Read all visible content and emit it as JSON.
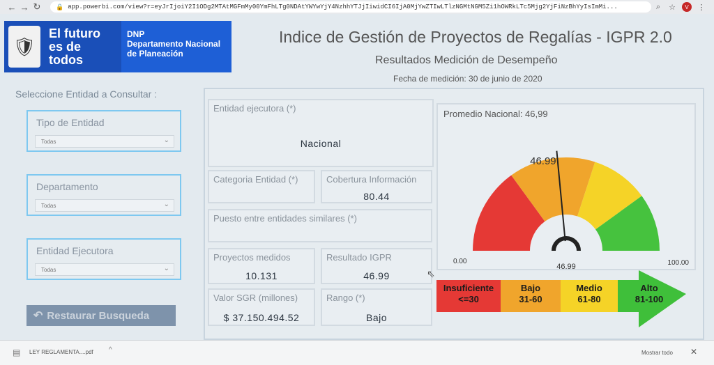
{
  "browser": {
    "url": "app.powerbi.com/view?r=eyJrIjoiY2I1ODg2MTAtMGFmMy00YmFhLTg0NDAtYWYwYjY4NzhhYTJjIiwidCI6IjA0MjYwZTIwLTlzNGMtNGM5Zi1hOWRkLTc5Mjg2YjFiNzBhYyIsImMi...",
    "avatar_letter": "V",
    "icons": [
      "back-icon",
      "forward-icon",
      "reload-icon",
      "lock-icon",
      "search-icon",
      "star-icon",
      "menu-icon"
    ]
  },
  "header": {
    "slogan": "El futuro es de todos",
    "dnp_abbr": "DNP",
    "dnp_name": "Departamento Nacional de Planeación",
    "title": "Indice de Gestión de Proyectos de Regalías - IGPR 2.0",
    "subtitle": "Resultados Medición de Desempeño",
    "date": "Fecha de medición: 30 de junio de 2020"
  },
  "filters": {
    "heading": "Seleccione Entidad a Consultar :",
    "items": [
      {
        "label": "Tipo de Entidad",
        "value": "Todas"
      },
      {
        "label": "Departamento",
        "value": "Todas"
      },
      {
        "label": "Entidad Ejecutora",
        "value": "Todas"
      }
    ],
    "restore_label": "Restaurar Busqueda"
  },
  "cards": {
    "entidad": {
      "label": "Entidad ejecutora (*)",
      "value": "Nacional"
    },
    "categoria": {
      "label": "Categoria Entidad (*)"
    },
    "cobertura": {
      "label": "Cobertura Información",
      "value": "80.44"
    },
    "puesto": {
      "label": "Puesto entre entidades similares (*)"
    },
    "proyectos": {
      "label": "Proyectos medidos",
      "value": "10.131"
    },
    "resultado": {
      "label": "Resultado IGPR",
      "value": "46.99"
    },
    "valor": {
      "label": "Valor SGR (millones)",
      "value": "$ 37.150.494.52"
    },
    "rango": {
      "label": "Rango (*)",
      "value": "Bajo"
    }
  },
  "gauge": {
    "title": "Promedio Nacional: 46,99",
    "value": 46.99,
    "value_label": "46.99",
    "center_label": "46.99",
    "min_label": "0.00",
    "max_label": "100.00",
    "min": 0,
    "max": 100,
    "segments": [
      {
        "from": 0,
        "to": 30,
        "color": "#e53935"
      },
      {
        "from": 30,
        "to": 60,
        "color": "#f0a52c"
      },
      {
        "from": 60,
        "to": 80,
        "color": "#f5d327"
      },
      {
        "from": 80,
        "to": 100,
        "color": "#46c23e"
      }
    ]
  },
  "legend": [
    {
      "name": "Insuficiente",
      "range": "<=30",
      "color": "#e53935"
    },
    {
      "name": "Bajo",
      "range": "31-60",
      "color": "#f0a52c"
    },
    {
      "name": "Medio",
      "range": "61-80",
      "color": "#f5d327"
    },
    {
      "name": "Alto",
      "range": "81-100",
      "color": "#3fbf3a"
    }
  ],
  "downloads": {
    "file": "LEY REGLAMENTA....pdf",
    "show_all": "Mostrar todo"
  }
}
